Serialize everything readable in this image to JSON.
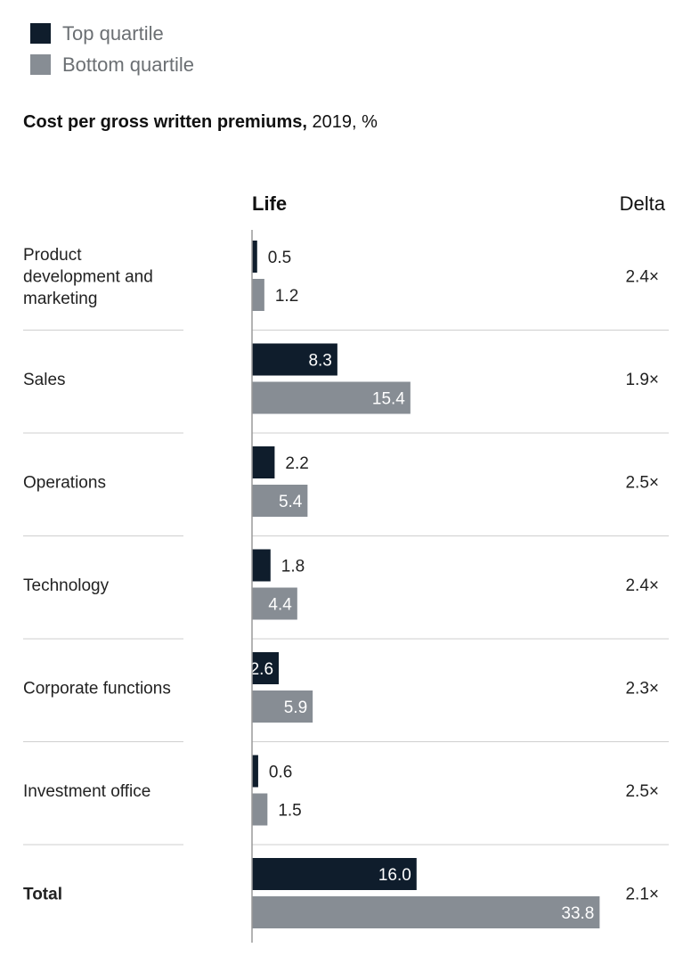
{
  "legend": {
    "items": [
      {
        "label": "Top quartile",
        "color": "#0f1d2c"
      },
      {
        "label": "Bottom quartile",
        "color": "#878d94"
      }
    ]
  },
  "title": {
    "bold": "Cost per gross written premiums,",
    "rest": " 2019, %"
  },
  "chart_data": {
    "type": "bar",
    "orientation": "horizontal",
    "column_header": "Life",
    "delta_header": "Delta",
    "categories": [
      [
        "Product",
        "development and",
        "marketing"
      ],
      [
        "Sales"
      ],
      [
        "Operations"
      ],
      [
        "Technology"
      ],
      [
        "Corporate functions"
      ],
      [
        "Investment office"
      ],
      [
        "Total"
      ]
    ],
    "bold_categories": [
      false,
      false,
      false,
      false,
      false,
      false,
      true
    ],
    "series": [
      {
        "name": "Top quartile",
        "color": "#0f1d2c",
        "values": [
          0.5,
          8.3,
          2.2,
          1.8,
          2.6,
          0.6,
          16.0
        ],
        "labels": [
          "0.5",
          "8.3",
          "2.2",
          "1.8",
          "2.6",
          "0.6",
          "16.0"
        ]
      },
      {
        "name": "Bottom quartile",
        "color": "#878d94",
        "values": [
          1.2,
          15.4,
          5.4,
          4.4,
          5.9,
          1.5,
          33.8
        ],
        "labels": [
          "1.2",
          "15.4",
          "5.4",
          "4.4",
          "5.9",
          "1.5",
          "33.8"
        ]
      }
    ],
    "delta": [
      "2.4×",
      "1.9×",
      "2.5×",
      "2.4×",
      "2.3×",
      "2.5×",
      "2.1×"
    ],
    "xlim": [
      0,
      33.8
    ],
    "legend_position": "top-left",
    "grid": false
  }
}
